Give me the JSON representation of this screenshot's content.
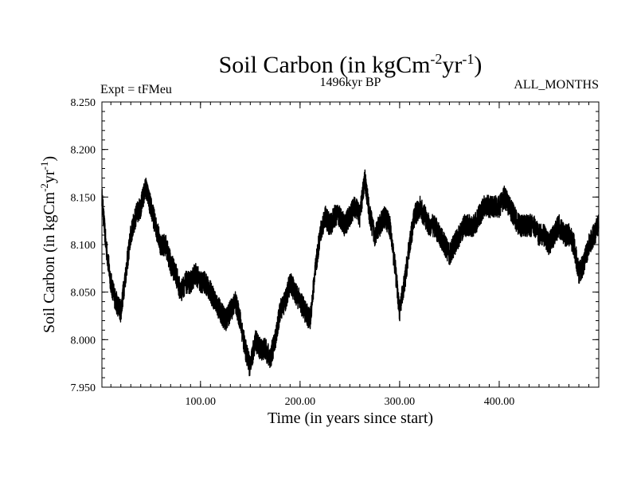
{
  "chart_data": {
    "type": "line",
    "title": {
      "main": "Soil Carbon (in kgCm",
      "sup1": "-2",
      "mid": "yr",
      "sup2": "-1",
      "end": ")"
    },
    "subtitle_left": "Expt = tFMeu",
    "subtitle_center": "1496kyr BP",
    "subtitle_right": "ALL_MONTHS",
    "xlabel": "Time (in years since start)",
    "ylabel": {
      "main": "Soil Carbon (in kgCm",
      "sup1": "-2",
      "mid": "yr",
      "sup2": "-1",
      "end": ")"
    },
    "xlim": [
      1,
      500
    ],
    "ylim": [
      7.95,
      8.25
    ],
    "x_ticks": [
      100,
      200,
      300,
      400
    ],
    "x_tick_labels": [
      "100.00",
      "200.00",
      "300.00",
      "400.00"
    ],
    "y_ticks": [
      7.95,
      8.0,
      8.05,
      8.1,
      8.15,
      8.2,
      8.25
    ],
    "y_tick_labels": [
      "7.950",
      "8.000",
      "8.050",
      "8.100",
      "8.150",
      "8.200",
      "8.250"
    ],
    "series": [
      {
        "name": "Soil Carbon",
        "color": "#000000",
        "x": [
          1,
          5,
          10,
          15,
          20,
          25,
          30,
          35,
          40,
          45,
          50,
          55,
          60,
          65,
          70,
          75,
          80,
          85,
          90,
          95,
          100,
          105,
          110,
          115,
          120,
          125,
          130,
          135,
          140,
          145,
          150,
          155,
          160,
          165,
          170,
          175,
          180,
          185,
          190,
          195,
          200,
          205,
          210,
          215,
          220,
          225,
          230,
          235,
          240,
          245,
          250,
          255,
          260,
          265,
          270,
          275,
          280,
          285,
          290,
          295,
          300,
          305,
          310,
          315,
          320,
          325,
          330,
          335,
          340,
          345,
          350,
          355,
          360,
          365,
          370,
          375,
          380,
          385,
          390,
          395,
          400,
          405,
          410,
          415,
          420,
          425,
          430,
          435,
          440,
          445,
          450,
          455,
          460,
          465,
          470,
          475,
          480,
          485,
          490,
          495,
          500
        ],
        "values": [
          8.15,
          8.1,
          8.06,
          8.04,
          8.03,
          8.07,
          8.11,
          8.13,
          8.14,
          8.16,
          8.14,
          8.12,
          8.1,
          8.1,
          8.08,
          8.07,
          8.05,
          8.06,
          8.06,
          8.07,
          8.06,
          8.06,
          8.05,
          8.04,
          8.03,
          8.02,
          8.03,
          8.04,
          8.02,
          7.99,
          7.97,
          8.0,
          7.99,
          7.99,
          7.98,
          8.0,
          8.03,
          8.04,
          8.06,
          8.05,
          8.04,
          8.03,
          8.02,
          8.07,
          8.11,
          8.13,
          8.12,
          8.13,
          8.13,
          8.12,
          8.13,
          8.14,
          8.13,
          8.17,
          8.13,
          8.11,
          8.12,
          8.13,
          8.12,
          8.08,
          8.03,
          8.06,
          8.1,
          8.13,
          8.14,
          8.13,
          8.12,
          8.12,
          8.11,
          8.1,
          8.09,
          8.1,
          8.11,
          8.12,
          8.12,
          8.12,
          8.13,
          8.14,
          8.14,
          8.14,
          8.14,
          8.15,
          8.14,
          8.13,
          8.12,
          8.12,
          8.12,
          8.12,
          8.11,
          8.11,
          8.1,
          8.11,
          8.12,
          8.11,
          8.11,
          8.1,
          8.07,
          8.08,
          8.1,
          8.11,
          8.12
        ],
        "noise_amplitude": 0.012
      }
    ]
  }
}
